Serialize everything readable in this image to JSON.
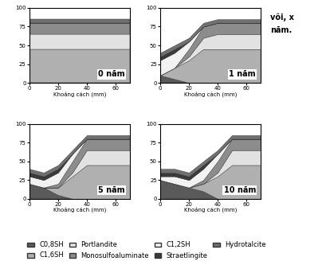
{
  "annotations": [
    "vôi, x",
    "năm."
  ],
  "legend": "lower center",
  "chart_data": [
    {
      "type": "area",
      "stacked": true,
      "title": "0 năm",
      "x_label": "Khoảng cách (mm)",
      "x": [
        0,
        10,
        20,
        30,
        40,
        50,
        60,
        70
      ],
      "xlim": [
        0,
        70
      ],
      "xticks": [
        0,
        20,
        40,
        60
      ],
      "ylim": [
        0,
        100
      ],
      "yticks": [
        0,
        25,
        50,
        75,
        100
      ],
      "series": [
        {
          "name": "C0,8SH",
          "color": "#5a5a5a",
          "values": [
            0,
            0,
            0,
            0,
            0,
            0,
            0,
            0
          ]
        },
        {
          "name": "C1,6SH",
          "color": "#b0b0b0",
          "values": [
            45,
            45,
            45,
            45,
            45,
            45,
            45,
            45
          ]
        },
        {
          "name": "Portlandite",
          "color": "#e2e2e2",
          "values": [
            20,
            20,
            20,
            20,
            20,
            20,
            20,
            20
          ]
        },
        {
          "name": "Monosulfoaluminate",
          "color": "#8c8c8c",
          "values": [
            15,
            15,
            15,
            15,
            15,
            15,
            15,
            15
          ]
        },
        {
          "name": "C1,2SH",
          "color": "#f2f2f2",
          "values": [
            0,
            0,
            0,
            0,
            0,
            0,
            0,
            0
          ]
        },
        {
          "name": "Straetlingite",
          "color": "#3a3a3a",
          "values": [
            0,
            0,
            0,
            0,
            0,
            0,
            0,
            0
          ]
        },
        {
          "name": "Hydrotalcite",
          "color": "#707070",
          "values": [
            5,
            5,
            5,
            5,
            5,
            5,
            5,
            5
          ]
        }
      ]
    },
    {
      "type": "area",
      "stacked": true,
      "title": "1 năm",
      "x_label": "Khoảng cách (mm)",
      "x": [
        0,
        10,
        20,
        30,
        40,
        50,
        60,
        70
      ],
      "xlim": [
        0,
        70
      ],
      "xticks": [
        0,
        20,
        40,
        60
      ],
      "ylim": [
        0,
        100
      ],
      "yticks": [
        0,
        25,
        50,
        75,
        100
      ],
      "series": [
        {
          "name": "C0,8SH",
          "color": "#5a5a5a",
          "values": [
            10,
            5,
            0,
            0,
            0,
            0,
            0,
            0
          ]
        },
        {
          "name": "C1,6SH",
          "color": "#b0b0b0",
          "values": [
            0,
            15,
            30,
            45,
            45,
            45,
            45,
            45
          ]
        },
        {
          "name": "Portlandite",
          "color": "#e2e2e2",
          "values": [
            0,
            0,
            5,
            15,
            20,
            20,
            20,
            20
          ]
        },
        {
          "name": "Monosulfoaluminate",
          "color": "#8c8c8c",
          "values": [
            0,
            0,
            10,
            15,
            15,
            15,
            15,
            15
          ]
        },
        {
          "name": "C1,2SH",
          "color": "#f2f2f2",
          "values": [
            20,
            20,
            10,
            0,
            0,
            0,
            0,
            0
          ]
        },
        {
          "name": "Straetlingite",
          "color": "#3a3a3a",
          "values": [
            5,
            5,
            0,
            0,
            0,
            0,
            0,
            0
          ]
        },
        {
          "name": "Hydrotalcite",
          "color": "#707070",
          "values": [
            5,
            5,
            5,
            5,
            5,
            5,
            5,
            5
          ]
        }
      ]
    },
    {
      "type": "area",
      "stacked": true,
      "title": "5 năm",
      "x_label": "Khoảng cách (mm)",
      "x": [
        0,
        10,
        20,
        30,
        40,
        50,
        60,
        70
      ],
      "xlim": [
        0,
        70
      ],
      "xticks": [
        0,
        20,
        40,
        60
      ],
      "ylim": [
        0,
        100
      ],
      "yticks": [
        0,
        25,
        50,
        75,
        100
      ],
      "series": [
        {
          "name": "C0,8SH",
          "color": "#5a5a5a",
          "values": [
            20,
            15,
            5,
            0,
            0,
            0,
            0,
            0
          ]
        },
        {
          "name": "C1,6SH",
          "color": "#b0b0b0",
          "values": [
            0,
            0,
            10,
            30,
            45,
            45,
            45,
            45
          ]
        },
        {
          "name": "Portlandite",
          "color": "#e2e2e2",
          "values": [
            0,
            0,
            0,
            5,
            20,
            20,
            20,
            20
          ]
        },
        {
          "name": "Monosulfoaluminate",
          "color": "#8c8c8c",
          "values": [
            0,
            0,
            5,
            15,
            15,
            15,
            15,
            15
          ]
        },
        {
          "name": "C1,2SH",
          "color": "#f2f2f2",
          "values": [
            10,
            10,
            15,
            10,
            0,
            0,
            0,
            0
          ]
        },
        {
          "name": "Straetlingite",
          "color": "#3a3a3a",
          "values": [
            5,
            5,
            5,
            0,
            0,
            0,
            0,
            0
          ]
        },
        {
          "name": "Hydrotalcite",
          "color": "#707070",
          "values": [
            5,
            5,
            5,
            5,
            5,
            5,
            5,
            5
          ]
        }
      ]
    },
    {
      "type": "area",
      "stacked": true,
      "title": "10 năm",
      "x_label": "Khoảng cách (mm)",
      "x": [
        0,
        10,
        20,
        30,
        40,
        50,
        60,
        70
      ],
      "xlim": [
        0,
        70
      ],
      "xticks": [
        0,
        20,
        40,
        60
      ],
      "ylim": [
        0,
        100
      ],
      "yticks": [
        0,
        25,
        50,
        75,
        100
      ],
      "series": [
        {
          "name": "C0,8SH",
          "color": "#5a5a5a",
          "values": [
            25,
            20,
            15,
            10,
            0,
            0,
            0,
            0
          ]
        },
        {
          "name": "C1,6SH",
          "color": "#b0b0b0",
          "values": [
            0,
            0,
            0,
            10,
            30,
            45,
            45,
            45
          ]
        },
        {
          "name": "Portlandite",
          "color": "#e2e2e2",
          "values": [
            0,
            0,
            0,
            0,
            5,
            20,
            20,
            20
          ]
        },
        {
          "name": "Monosulfoaluminate",
          "color": "#8c8c8c",
          "values": [
            0,
            0,
            0,
            5,
            15,
            15,
            15,
            15
          ]
        },
        {
          "name": "C1,2SH",
          "color": "#f2f2f2",
          "values": [
            5,
            10,
            10,
            15,
            10,
            0,
            0,
            0
          ]
        },
        {
          "name": "Straetlingite",
          "color": "#3a3a3a",
          "values": [
            5,
            5,
            5,
            5,
            0,
            0,
            0,
            0
          ]
        },
        {
          "name": "Hydrotalcite",
          "color": "#707070",
          "values": [
            5,
            5,
            5,
            5,
            5,
            5,
            5,
            5
          ]
        }
      ]
    }
  ]
}
